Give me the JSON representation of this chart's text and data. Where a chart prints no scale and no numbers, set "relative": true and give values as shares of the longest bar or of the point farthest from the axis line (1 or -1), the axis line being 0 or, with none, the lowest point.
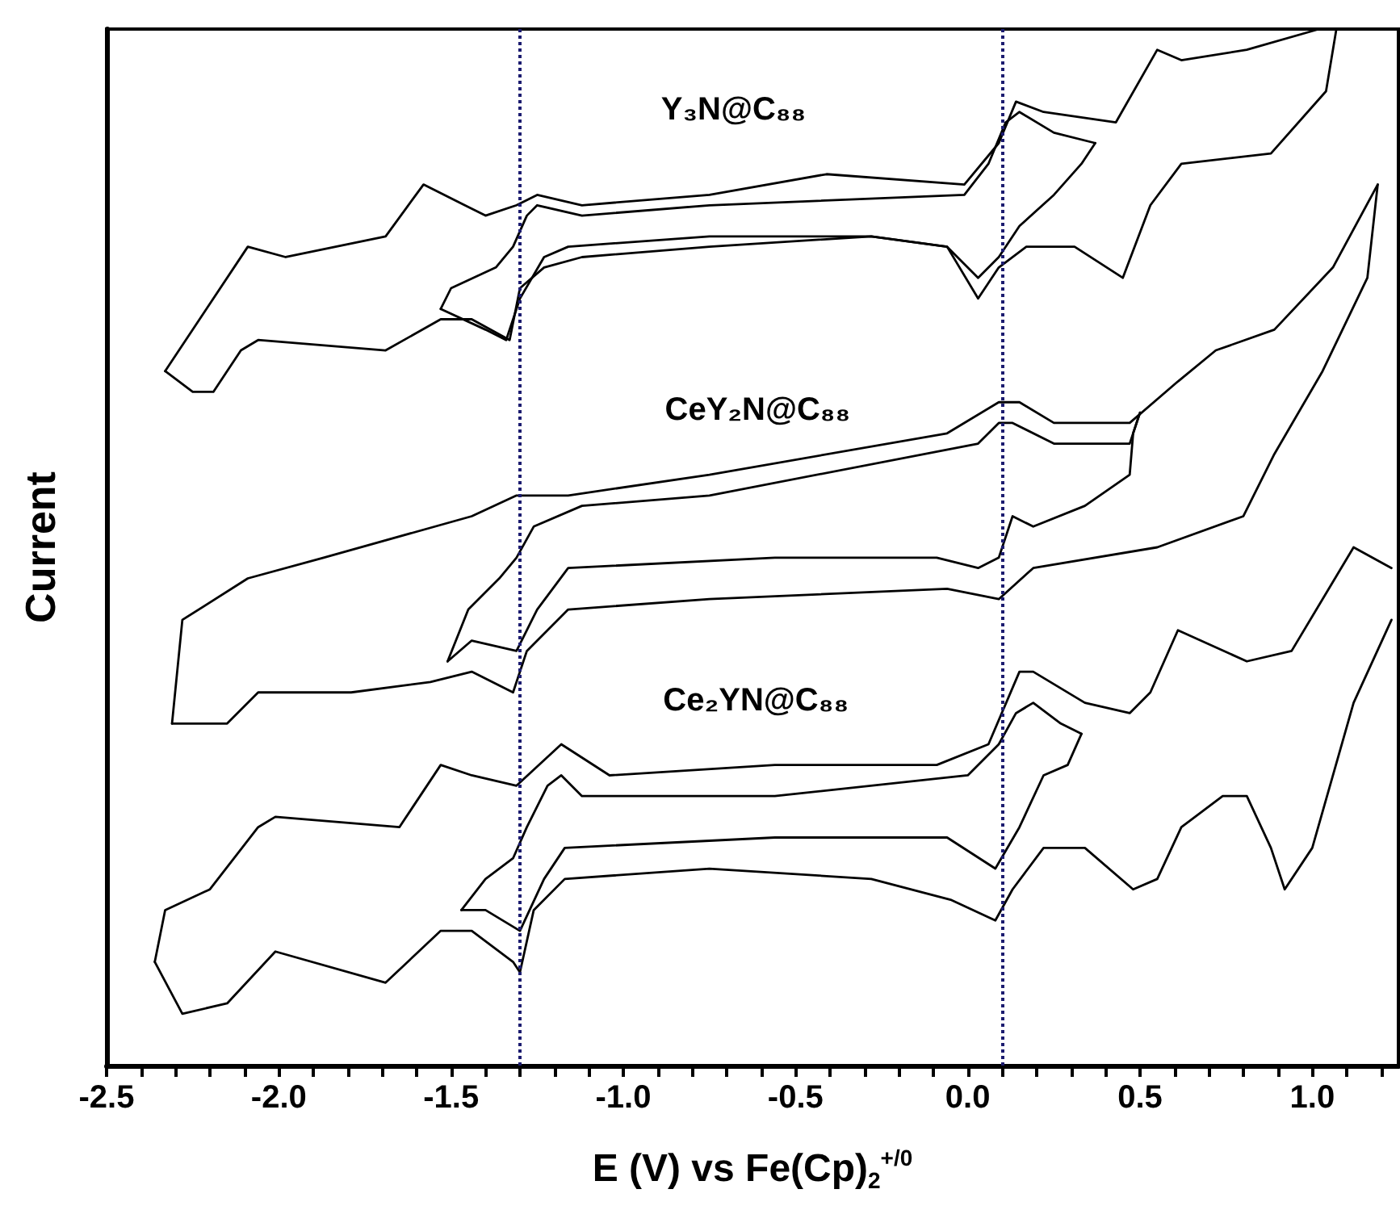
{
  "chart_data": {
    "type": "line",
    "relative": true,
    "xlabel": "E (V) vs Fe(Cp)$_{2}$$^{+/0}$",
    "ylabel": "Current",
    "xlim": [
      -2.5,
      1.25
    ],
    "xticks": [
      -2.5,
      {
        "value": -2.4,
        "label": null
      },
      {
        "value": -2.3,
        "label": null
      },
      {
        "value": -2.2,
        "label": null
      },
      {
        "value": -2.1,
        "label": null
      },
      {
        "value": -2,
        "label": "-2.0"
      },
      {
        "value": -1.9,
        "label": null
      },
      {
        "value": -1.8,
        "label": null
      },
      {
        "value": -1.7,
        "label": null
      },
      {
        "value": -1.6,
        "label": null
      },
      -1.5,
      {
        "value": -1.4,
        "label": null
      },
      {
        "value": -1.3,
        "label": null
      },
      {
        "value": -1.2,
        "label": null
      },
      {
        "value": -1.1,
        "label": null
      },
      {
        "value": -1,
        "label": "-1.0"
      },
      {
        "value": -0.9,
        "label": null
      },
      {
        "value": -0.8,
        "label": null
      },
      {
        "value": -0.7,
        "label": null
      },
      {
        "value": -0.6,
        "label": null
      },
      -0.5,
      {
        "value": -0.4,
        "label": null
      },
      {
        "value": -0.3,
        "label": null
      },
      {
        "value": -0.2,
        "label": null
      },
      {
        "value": -0.1,
        "label": null
      },
      {
        "value": 0,
        "label": "0.0"
      },
      {
        "value": 0.1,
        "label": null
      },
      {
        "value": 0.2,
        "label": null
      },
      {
        "value": 0.3,
        "label": null
      },
      {
        "value": 0.4,
        "label": null
      },
      0.5,
      {
        "value": 0.6,
        "label": null
      },
      {
        "value": 0.7,
        "label": null
      },
      {
        "value": 0.8,
        "label": null
      },
      {
        "value": 0.9,
        "label": null
      },
      {
        "value": 1,
        "label": "1.0"
      },
      {
        "value": 1.1,
        "label": null
      },
      {
        "value": 1.2,
        "label": null
      }
    ],
    "grid": false,
    "legend": false,
    "marker": "none",
    "line_style": "solid",
    "series": [
      {
        "name": "Y₃N@C₈₈",
        "color": "#000000",
        "x": [
          -2.33,
          -2.09,
          -1.98,
          -1.69,
          -1.58,
          -1.4,
          -1.31,
          -1.25,
          -1.12,
          -0.75,
          -0.41,
          -0.01,
          0.09,
          0.14,
          0.22,
          0.43,
          0.55,
          0.62,
          0.81,
          1.02,
          1.07
        ],
        "values": [
          0.67,
          0.79,
          0.78,
          0.8,
          0.85,
          0.82,
          0.83,
          0.84,
          0.83,
          0.84,
          0.86,
          0.85,
          0.89,
          0.93,
          0.92,
          0.91,
          0.98,
          0.97,
          0.98,
          1,
          1
        ]
      },
      {
        "color": "#000000",
        "x": [
          -2.33,
          -2.25,
          -2.19,
          -2.11,
          -2.06,
          -1.69,
          -1.53,
          -1.44,
          -1.33,
          -1.3,
          -1.23,
          -1.12,
          -0.75,
          -0.28,
          -0.06,
          0.03,
          0.09,
          0.17,
          0.31,
          0.45,
          0.53,
          0.62,
          0.88,
          1.04,
          1.07
        ],
        "values": [
          0.67,
          0.65,
          0.65,
          0.69,
          0.7,
          0.69,
          0.72,
          0.72,
          0.7,
          0.75,
          0.77,
          0.78,
          0.79,
          0.8,
          0.79,
          0.74,
          0.77,
          0.79,
          0.79,
          0.76,
          0.83,
          0.87,
          0.88,
          0.94,
          1
        ]
      },
      {
        "color": "#000000",
        "x": [
          -1.53,
          -1.5,
          -1.37,
          -1.32,
          -1.28,
          -1.25,
          -1.12,
          -0.75,
          -0.01,
          0.06,
          0.11,
          0.15,
          0.25,
          0.37
        ],
        "values": [
          0.73,
          0.75,
          0.77,
          0.79,
          0.82,
          0.83,
          0.82,
          0.83,
          0.84,
          0.87,
          0.91,
          0.92,
          0.9,
          0.89
        ]
      },
      {
        "color": "#000000",
        "x": [
          -1.53,
          -1.4,
          -1.34,
          -1.3,
          -1.23,
          -1.16,
          -0.75,
          -0.28,
          -0.06,
          0.03,
          0.09,
          0.15,
          0.25,
          0.33,
          0.37
        ],
        "values": [
          0.73,
          0.71,
          0.7,
          0.74,
          0.78,
          0.79,
          0.8,
          0.8,
          0.79,
          0.76,
          0.78,
          0.81,
          0.84,
          0.87,
          0.89
        ]
      },
      {
        "name": "CeY₂N@C₈₈",
        "color": "#000000",
        "x": [
          -2.31,
          -2.28,
          -2.09,
          -1.87,
          -1.44,
          -1.31,
          -1.16,
          -0.75,
          -0.06,
          0.09,
          0.15,
          0.25,
          0.47,
          0.61,
          0.72,
          0.89,
          1.06,
          1.19
        ],
        "values": [
          0.33,
          0.43,
          0.47,
          0.49,
          0.53,
          0.55,
          0.55,
          0.57,
          0.61,
          0.64,
          0.64,
          0.62,
          0.62,
          0.66,
          0.69,
          0.71,
          0.77,
          0.85
        ]
      },
      {
        "color": "#000000",
        "x": [
          -2.31,
          -2.15,
          -2.06,
          -1.79,
          -1.56,
          -1.44,
          -1.32,
          -1.28,
          -1.16,
          -0.75,
          -0.06,
          0.09,
          0.19,
          0.55,
          0.8,
          0.89,
          1.03,
          1.16,
          1.19
        ],
        "values": [
          0.33,
          0.33,
          0.36,
          0.36,
          0.37,
          0.38,
          0.36,
          0.4,
          0.44,
          0.45,
          0.46,
          0.45,
          0.48,
          0.5,
          0.53,
          0.59,
          0.67,
          0.76,
          0.85
        ]
      },
      {
        "color": "#000000",
        "x": [
          -1.51,
          -1.45,
          -1.36,
          -1.31,
          -1.26,
          -1.12,
          -0.75,
          0.03,
          0.09,
          0.13,
          0.25,
          0.47,
          0.5
        ],
        "values": [
          0.39,
          0.44,
          0.47,
          0.49,
          0.52,
          0.54,
          0.55,
          0.6,
          0.62,
          0.62,
          0.6,
          0.6,
          0.63
        ]
      },
      {
        "color": "#000000",
        "x": [
          -1.51,
          -1.44,
          -1.31,
          -1.25,
          -1.16,
          -0.56,
          -0.09,
          0.03,
          0.09,
          0.13,
          0.19,
          0.34,
          0.47,
          0.48,
          0.5
        ],
        "values": [
          0.39,
          0.41,
          0.4,
          0.44,
          0.48,
          0.49,
          0.49,
          0.48,
          0.49,
          0.53,
          0.52,
          0.54,
          0.57,
          0.61,
          0.63
        ]
      },
      {
        "name": "Ce₂YN@C₈₈",
        "color": "#000000",
        "x": [
          -2.36,
          -2.33,
          -2.2,
          -2.06,
          -2.01,
          -1.65,
          -1.53,
          -1.44,
          -1.31,
          -1.18,
          -1.04,
          -0.56,
          -0.09,
          0.06,
          0.15,
          0.19,
          0.34,
          0.47,
          0.53,
          0.61,
          0.81,
          0.94,
          1.12,
          1.23
        ],
        "values": [
          0.1,
          0.15,
          0.17,
          0.23,
          0.24,
          0.23,
          0.29,
          0.28,
          0.27,
          0.31,
          0.28,
          0.29,
          0.29,
          0.31,
          0.38,
          0.38,
          0.35,
          0.34,
          0.36,
          0.42,
          0.39,
          0.4,
          0.5,
          0.48
        ]
      },
      {
        "color": "#000000",
        "x": [
          -2.36,
          -2.28,
          -2.15,
          -2.01,
          -1.69,
          -1.53,
          -1.44,
          -1.32,
          -1.3,
          -1.26,
          -1.17,
          -0.75,
          -0.28,
          -0.05,
          0.08,
          0.13,
          0.22,
          0.34,
          0.48,
          0.55,
          0.62,
          0.74,
          0.81,
          0.88,
          0.92,
          1,
          1.12,
          1.23
        ],
        "values": [
          0.1,
          0.05,
          0.06,
          0.11,
          0.08,
          0.13,
          0.13,
          0.1,
          0.09,
          0.15,
          0.18,
          0.19,
          0.18,
          0.16,
          0.14,
          0.17,
          0.21,
          0.21,
          0.17,
          0.18,
          0.23,
          0.26,
          0.26,
          0.21,
          0.17,
          0.21,
          0.35,
          0.43
        ]
      },
      {
        "color": "#000000",
        "x": [
          -1.47,
          -1.4,
          -1.32,
          -1.28,
          -1.22,
          -1.18,
          -1.12,
          -0.56,
          0,
          0.09,
          0.14,
          0.19,
          0.27,
          0.33
        ],
        "values": [
          0.15,
          0.18,
          0.2,
          0.23,
          0.27,
          0.28,
          0.26,
          0.26,
          0.28,
          0.31,
          0.34,
          0.35,
          0.33,
          0.32
        ]
      },
      {
        "color": "#000000",
        "x": [
          -1.47,
          -1.4,
          -1.3,
          -1.23,
          -1.17,
          -0.56,
          -0.06,
          0.08,
          0.15,
          0.22,
          0.29,
          0.33
        ],
        "values": [
          0.15,
          0.15,
          0.13,
          0.18,
          0.21,
          0.22,
          0.22,
          0.19,
          0.23,
          0.28,
          0.29,
          0.32
        ]
      }
    ],
    "ref_lines": [
      {
        "axis": "x",
        "value": -1.3,
        "color": "#1c1c70",
        "line_style": "dotted"
      },
      {
        "axis": "x",
        "value": 0.1,
        "color": "#1c1c70",
        "line_style": "dotted"
      }
    ]
  }
}
